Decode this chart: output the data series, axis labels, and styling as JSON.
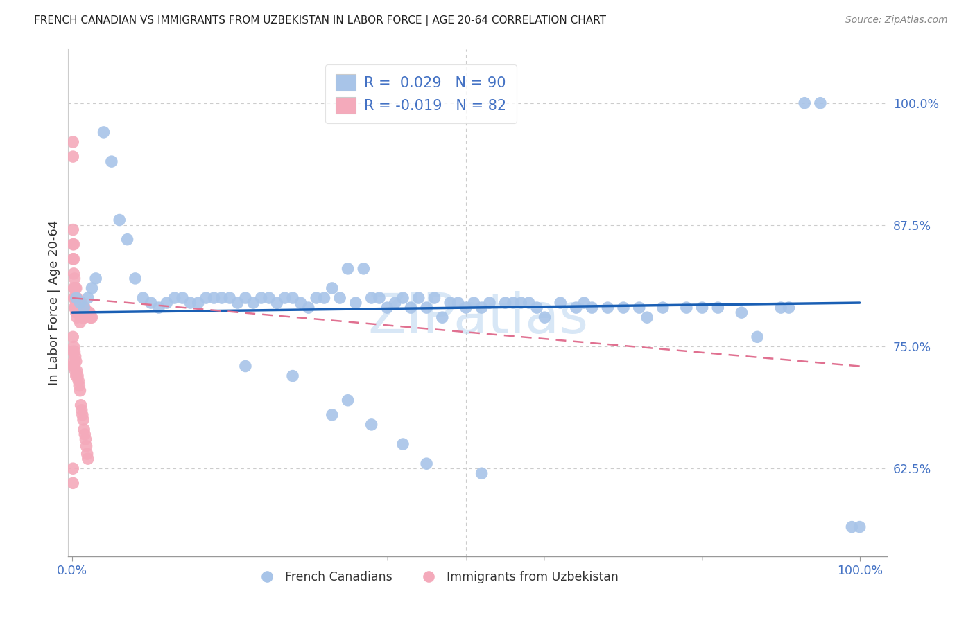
{
  "title": "FRENCH CANADIAN VS IMMIGRANTS FROM UZBEKISTAN IN LABOR FORCE | AGE 20-64 CORRELATION CHART",
  "source": "Source: ZipAtlas.com",
  "ylabel": "In Labor Force | Age 20-64",
  "blue_r": "0.029",
  "blue_n": "90",
  "pink_r": "-0.019",
  "pink_n": "82",
  "legend_label_blue": "French Canadians",
  "legend_label_pink": "Immigrants from Uzbekistan",
  "blue_color": "#a8c4e8",
  "pink_color": "#f4aabb",
  "blue_line_color": "#1a5fb4",
  "pink_line_color": "#e07090",
  "axis_label_color": "#4472c4",
  "grid_color": "#cccccc",
  "ytick_vals": [
    0.625,
    0.75,
    0.875,
    1.0
  ],
  "ytick_labels": [
    "62.5%",
    "75.0%",
    "87.5%",
    "100.0%"
  ],
  "xlim": [
    -0.005,
    1.035
  ],
  "ylim": [
    0.535,
    1.055
  ],
  "blue_trend": [
    0.785,
    0.795
  ],
  "pink_trend": [
    0.8,
    0.73
  ],
  "blue_x": [
    0.005,
    0.01,
    0.015,
    0.02,
    0.025,
    0.03,
    0.04,
    0.05,
    0.06,
    0.07,
    0.08,
    0.09,
    0.1,
    0.11,
    0.12,
    0.13,
    0.14,
    0.15,
    0.16,
    0.17,
    0.18,
    0.19,
    0.2,
    0.21,
    0.22,
    0.23,
    0.24,
    0.25,
    0.26,
    0.27,
    0.28,
    0.29,
    0.3,
    0.31,
    0.32,
    0.33,
    0.34,
    0.35,
    0.36,
    0.37,
    0.38,
    0.39,
    0.4,
    0.41,
    0.42,
    0.43,
    0.44,
    0.45,
    0.46,
    0.47,
    0.48,
    0.49,
    0.5,
    0.51,
    0.52,
    0.53,
    0.55,
    0.56,
    0.57,
    0.58,
    0.59,
    0.6,
    0.62,
    0.64,
    0.65,
    0.66,
    0.68,
    0.7,
    0.72,
    0.73,
    0.75,
    0.78,
    0.8,
    0.82,
    0.85,
    0.87,
    0.9,
    0.91,
    0.93,
    0.95,
    0.99,
    1.0,
    0.35,
    0.38,
    0.42,
    0.45,
    0.22,
    0.28,
    0.33,
    0.52
  ],
  "blue_y": [
    0.8,
    0.795,
    0.79,
    0.8,
    0.81,
    0.82,
    0.97,
    0.94,
    0.88,
    0.86,
    0.82,
    0.8,
    0.795,
    0.79,
    0.795,
    0.8,
    0.8,
    0.795,
    0.795,
    0.8,
    0.8,
    0.8,
    0.8,
    0.795,
    0.8,
    0.795,
    0.8,
    0.8,
    0.795,
    0.8,
    0.8,
    0.795,
    0.79,
    0.8,
    0.8,
    0.81,
    0.8,
    0.83,
    0.795,
    0.83,
    0.8,
    0.8,
    0.79,
    0.795,
    0.8,
    0.79,
    0.8,
    0.79,
    0.8,
    0.78,
    0.795,
    0.795,
    0.79,
    0.795,
    0.79,
    0.795,
    0.795,
    0.795,
    0.795,
    0.795,
    0.79,
    0.78,
    0.795,
    0.79,
    0.795,
    0.79,
    0.79,
    0.79,
    0.79,
    0.78,
    0.79,
    0.79,
    0.79,
    0.79,
    0.785,
    0.76,
    0.79,
    0.79,
    1.0,
    1.0,
    0.565,
    0.565,
    0.695,
    0.67,
    0.65,
    0.63,
    0.73,
    0.72,
    0.68,
    0.62
  ],
  "pink_x": [
    0.001,
    0.001,
    0.001,
    0.001,
    0.001,
    0.002,
    0.002,
    0.002,
    0.002,
    0.002,
    0.003,
    0.003,
    0.003,
    0.003,
    0.004,
    0.004,
    0.004,
    0.005,
    0.005,
    0.005,
    0.005,
    0.006,
    0.006,
    0.006,
    0.007,
    0.007,
    0.008,
    0.008,
    0.009,
    0.009,
    0.01,
    0.01,
    0.01,
    0.011,
    0.011,
    0.012,
    0.012,
    0.013,
    0.013,
    0.014,
    0.014,
    0.015,
    0.015,
    0.016,
    0.016,
    0.017,
    0.018,
    0.019,
    0.02,
    0.021,
    0.022,
    0.023,
    0.024,
    0.025,
    0.001,
    0.001,
    0.001,
    0.002,
    0.002,
    0.003,
    0.003,
    0.004,
    0.004,
    0.005,
    0.005,
    0.006,
    0.007,
    0.008,
    0.009,
    0.01,
    0.011,
    0.012,
    0.013,
    0.014,
    0.015,
    0.016,
    0.017,
    0.018,
    0.019,
    0.02,
    0.001,
    0.001
  ],
  "pink_y": [
    0.96,
    0.945,
    0.87,
    0.855,
    0.84,
    0.855,
    0.84,
    0.825,
    0.81,
    0.8,
    0.82,
    0.81,
    0.8,
    0.79,
    0.81,
    0.8,
    0.79,
    0.81,
    0.8,
    0.795,
    0.785,
    0.8,
    0.79,
    0.78,
    0.795,
    0.785,
    0.795,
    0.785,
    0.795,
    0.785,
    0.795,
    0.785,
    0.775,
    0.795,
    0.785,
    0.795,
    0.785,
    0.79,
    0.78,
    0.79,
    0.78,
    0.79,
    0.78,
    0.79,
    0.78,
    0.785,
    0.785,
    0.785,
    0.785,
    0.785,
    0.785,
    0.78,
    0.78,
    0.78,
    0.76,
    0.745,
    0.73,
    0.75,
    0.735,
    0.745,
    0.73,
    0.74,
    0.725,
    0.735,
    0.72,
    0.725,
    0.72,
    0.715,
    0.71,
    0.705,
    0.69,
    0.685,
    0.68,
    0.675,
    0.665,
    0.66,
    0.655,
    0.648,
    0.64,
    0.635,
    0.625,
    0.61
  ]
}
